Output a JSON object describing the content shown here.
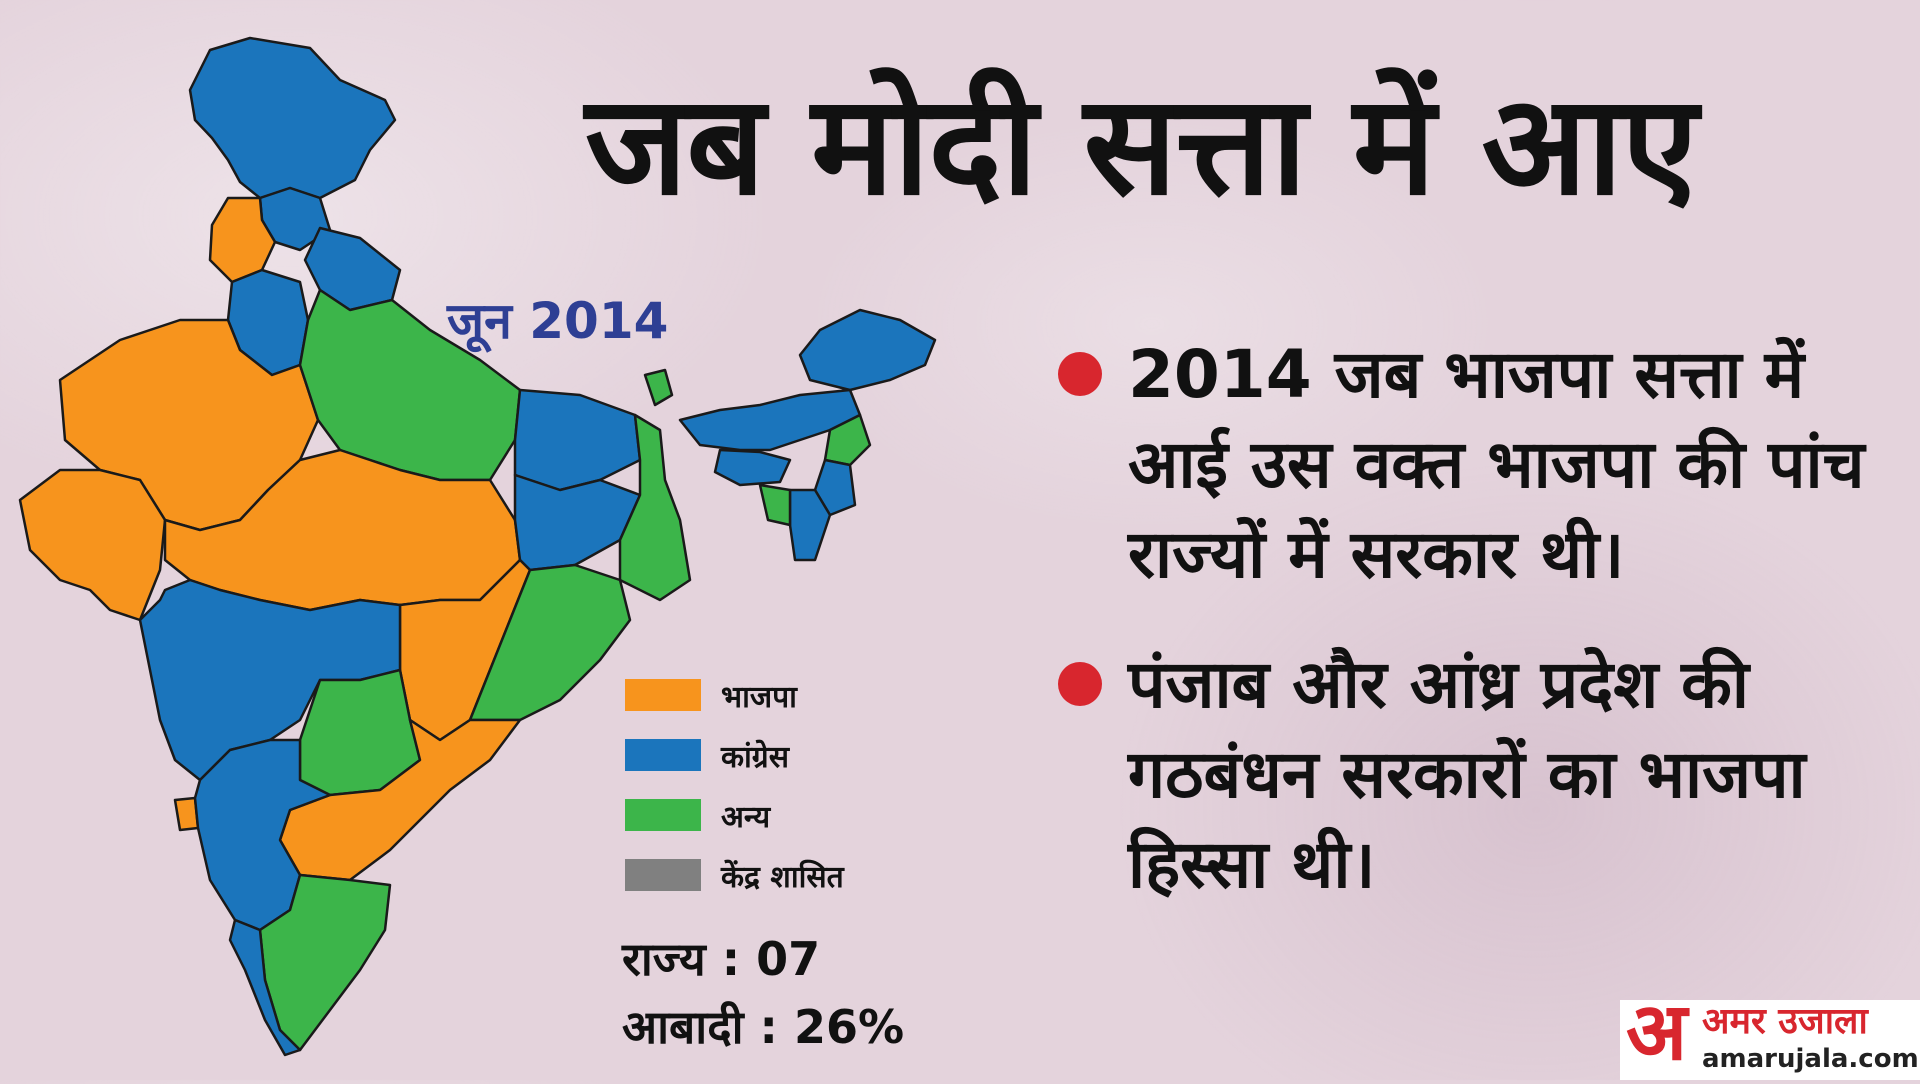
{
  "title": "जब मोदी सत्ता में आए",
  "map": {
    "date_label": "जून 2014",
    "party_colors": {
      "bjp": "#f7941d",
      "congress": "#1b75bc",
      "others": "#3cb54a",
      "union_territory": "#808080"
    }
  },
  "legend": [
    {
      "label": "भाजपा",
      "color": "#f7941d"
    },
    {
      "label": "कांग्रेस",
      "color": "#1b75bc"
    },
    {
      "label": "अन्य",
      "color": "#3cb54a"
    },
    {
      "label": "केंद्र शासित",
      "color": "#808080"
    }
  ],
  "stats": {
    "states": "राज्य : 07",
    "population": "आबादी : 26%"
  },
  "bullets": [
    {
      "text": "2014 जब भाजपा सत्ता में आई उस वक्त भाजपा की पांच राज्यों में सरकार थी।"
    },
    {
      "text": "पंजाब और आंध्र प्रदेश की गठबंधन सरकारों का भाजपा हिस्सा थी।"
    }
  ],
  "logo": {
    "mark": "अ",
    "name": "अमर उजाला",
    "url": "amarujala.com"
  },
  "accent_color": "#d8262e"
}
